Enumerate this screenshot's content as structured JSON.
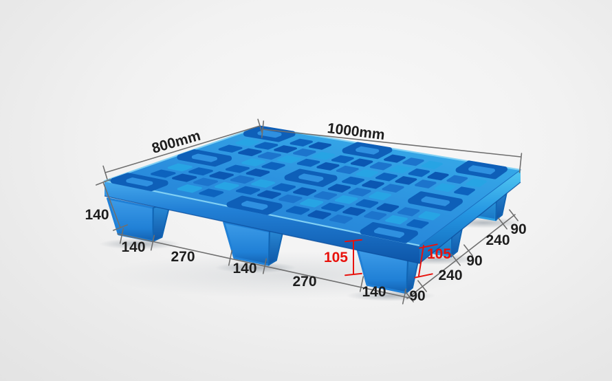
{
  "scene": {
    "description": "Blue plastic nine-leg nestable pallet product photo with dimension callouts",
    "background_center": "#f9f9f9",
    "background_edge": "#e3e3e3"
  },
  "pallet": {
    "kind": "nine-leg nestable plastic pallet",
    "deck_color": "#2b8fde",
    "hole_colors": [
      "#0b57b2",
      "#1c74cc",
      "#27a4e4",
      "#0d63be"
    ],
    "rim_front_color": "#2280d6",
    "rim_right_color": "#2596e2",
    "leg_color": "#2080d6",
    "highlight_color": "#86d4f6"
  },
  "dims": {
    "line_color": "#6f6f6f",
    "text_color": "#1d1d1d",
    "accent_color": "#e8120c",
    "top_length": "1000mm",
    "left_width": "800mm",
    "left_height": "140",
    "bottom_segments": [
      "140",
      "270",
      "140",
      "270",
      "140"
    ],
    "right_segments": [
      "90",
      "240",
      "90",
      "240",
      "90"
    ],
    "inner_height_left": "105",
    "inner_height_right": "105"
  }
}
